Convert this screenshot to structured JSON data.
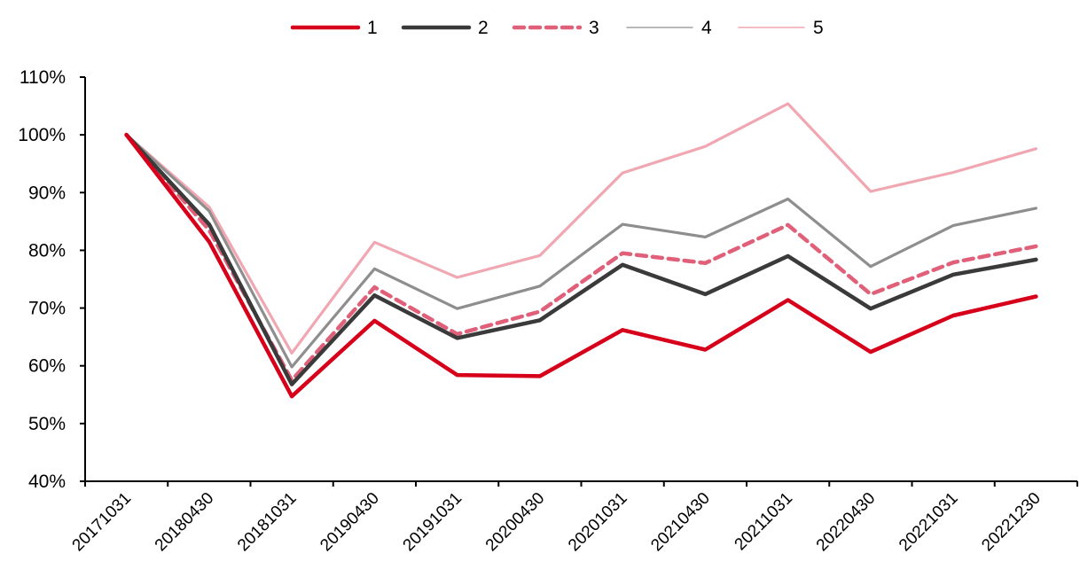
{
  "chart_data": {
    "type": "line",
    "title": "",
    "xlabel": "",
    "ylabel": "",
    "ylim": [
      40,
      110
    ],
    "y_ticks": [
      "40%",
      "50%",
      "60%",
      "70%",
      "80%",
      "90%",
      "100%",
      "110%"
    ],
    "y_tick_values": [
      40,
      50,
      60,
      70,
      80,
      90,
      100,
      110
    ],
    "categories": [
      "20171031",
      "20180430",
      "20181031",
      "20190430",
      "20191031",
      "20200430",
      "20201031",
      "20210430",
      "20211031",
      "20220430",
      "20221031",
      "20221230"
    ],
    "legend_position": "top-center",
    "grid": false,
    "series": [
      {
        "name": "1",
        "color": "#d7001b",
        "style": "solid-thick",
        "values": [
          100,
          81.5,
          54.7,
          67.8,
          58.4,
          58.2,
          66.2,
          62.8,
          71.4,
          62.4,
          68.7,
          72.0
        ]
      },
      {
        "name": "2",
        "color": "#3a3a3a",
        "style": "solid-thick",
        "values": [
          100,
          84.5,
          56.8,
          72.2,
          64.8,
          67.9,
          77.5,
          72.4,
          79.0,
          69.9,
          75.8,
          78.4
        ]
      },
      {
        "name": "3",
        "color": "#e0607a",
        "style": "dashed",
        "values": [
          100,
          83.5,
          57.5,
          73.6,
          65.5,
          69.4,
          79.5,
          77.8,
          84.4,
          72.4,
          77.9,
          80.7
        ]
      },
      {
        "name": "4",
        "color": "#8e8e8e",
        "style": "solid-thin",
        "values": [
          100,
          86.8,
          59.8,
          76.8,
          69.9,
          73.8,
          84.5,
          82.3,
          88.9,
          77.2,
          84.3,
          87.3
        ]
      },
      {
        "name": "5",
        "color": "#f0a7b2",
        "style": "solid-light",
        "values": [
          100,
          87.5,
          62.2,
          81.4,
          75.3,
          79.1,
          93.4,
          98.0,
          105.4,
          90.2,
          93.5,
          97.6
        ]
      }
    ]
  }
}
